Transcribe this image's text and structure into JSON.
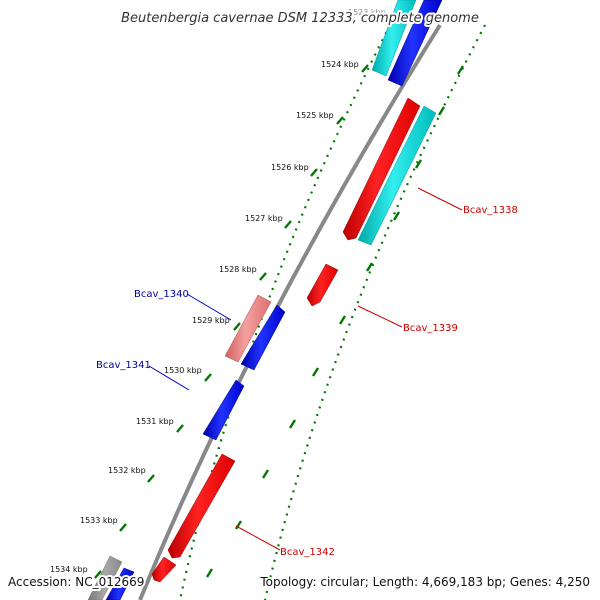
{
  "title": "Beutenbergia cavernae DSM 12333, complete genome",
  "ticks": [
    "1523 kbp",
    "1524 kbp",
    "1525 kbp",
    "1526 kbp",
    "1527 kbp",
    "1528 kbp",
    "1529 kbp",
    "1530 kbp",
    "1531 kbp",
    "1532 kbp",
    "1533 kbp",
    "1534 kbp"
  ],
  "genes": {
    "bcav_1338": "Bcav_1338",
    "bcav_1339": "Bcav_1339",
    "bcav_1340": "Bcav_1340",
    "bcav_1341": "Bcav_1341",
    "bcav_1342": "Bcav_1342"
  },
  "colors": {
    "forward": "#ff0000",
    "reverse": "#0000ee",
    "cyan": "#00cccc",
    "pink": "#e88080",
    "gray": "#888888",
    "tick": "#007700",
    "label_red": "#cc0000",
    "label_blue": "#000099"
  },
  "footer": {
    "accession": "Accession: NC_012669",
    "topology": "Topology: circular; Length: 4,669,183 bp; Genes: 4,250"
  }
}
